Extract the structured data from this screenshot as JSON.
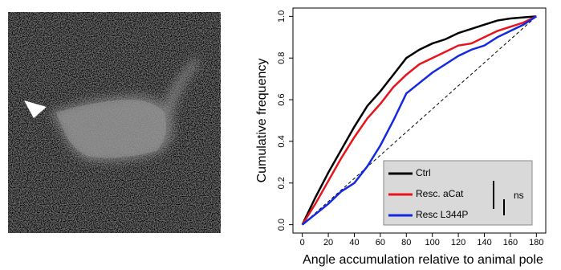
{
  "chart_data": {
    "type": "line",
    "xlabel": "Angle accumulation relative to animal pole",
    "ylabel": "Cumulative frequency",
    "x": [
      0,
      10,
      20,
      30,
      40,
      50,
      60,
      70,
      80,
      90,
      100,
      110,
      120,
      130,
      140,
      150,
      160,
      170,
      180
    ],
    "series": [
      {
        "name": "Ctrl",
        "color": "#000000",
        "values": [
          0,
          0.13,
          0.25,
          0.36,
          0.47,
          0.57,
          0.64,
          0.72,
          0.8,
          0.84,
          0.87,
          0.89,
          0.92,
          0.94,
          0.96,
          0.98,
          0.99,
          0.995,
          1
        ]
      },
      {
        "name": "Resc. aCat",
        "color": "#e8141c",
        "values": [
          0,
          0.1,
          0.21,
          0.32,
          0.42,
          0.51,
          0.58,
          0.66,
          0.72,
          0.77,
          0.8,
          0.83,
          0.86,
          0.87,
          0.9,
          0.93,
          0.95,
          0.97,
          1
        ]
      },
      {
        "name": "Resc L344P",
        "color": "#1428e0",
        "values": [
          0,
          0.05,
          0.1,
          0.16,
          0.2,
          0.28,
          0.38,
          0.5,
          0.63,
          0.68,
          0.73,
          0.77,
          0.81,
          0.84,
          0.86,
          0.9,
          0.93,
          0.96,
          1
        ]
      }
    ],
    "xlim": [
      -7.2,
      187.2
    ],
    "ylim": [
      -0.04,
      1.04
    ],
    "xticks": [
      0,
      20,
      40,
      60,
      80,
      100,
      120,
      140,
      160,
      180
    ],
    "yticks": [
      {
        "value": 0,
        "label": "0.0"
      },
      {
        "value": 0.2,
        "label": "0.2"
      },
      {
        "value": 0.4,
        "label": "0.4"
      },
      {
        "value": 0.6,
        "label": "0.6"
      },
      {
        "value": 0.8,
        "label": "0.8"
      },
      {
        "value": 1,
        "label": "1.0"
      }
    ],
    "annotation": "ns",
    "legend": "bottom-right"
  }
}
